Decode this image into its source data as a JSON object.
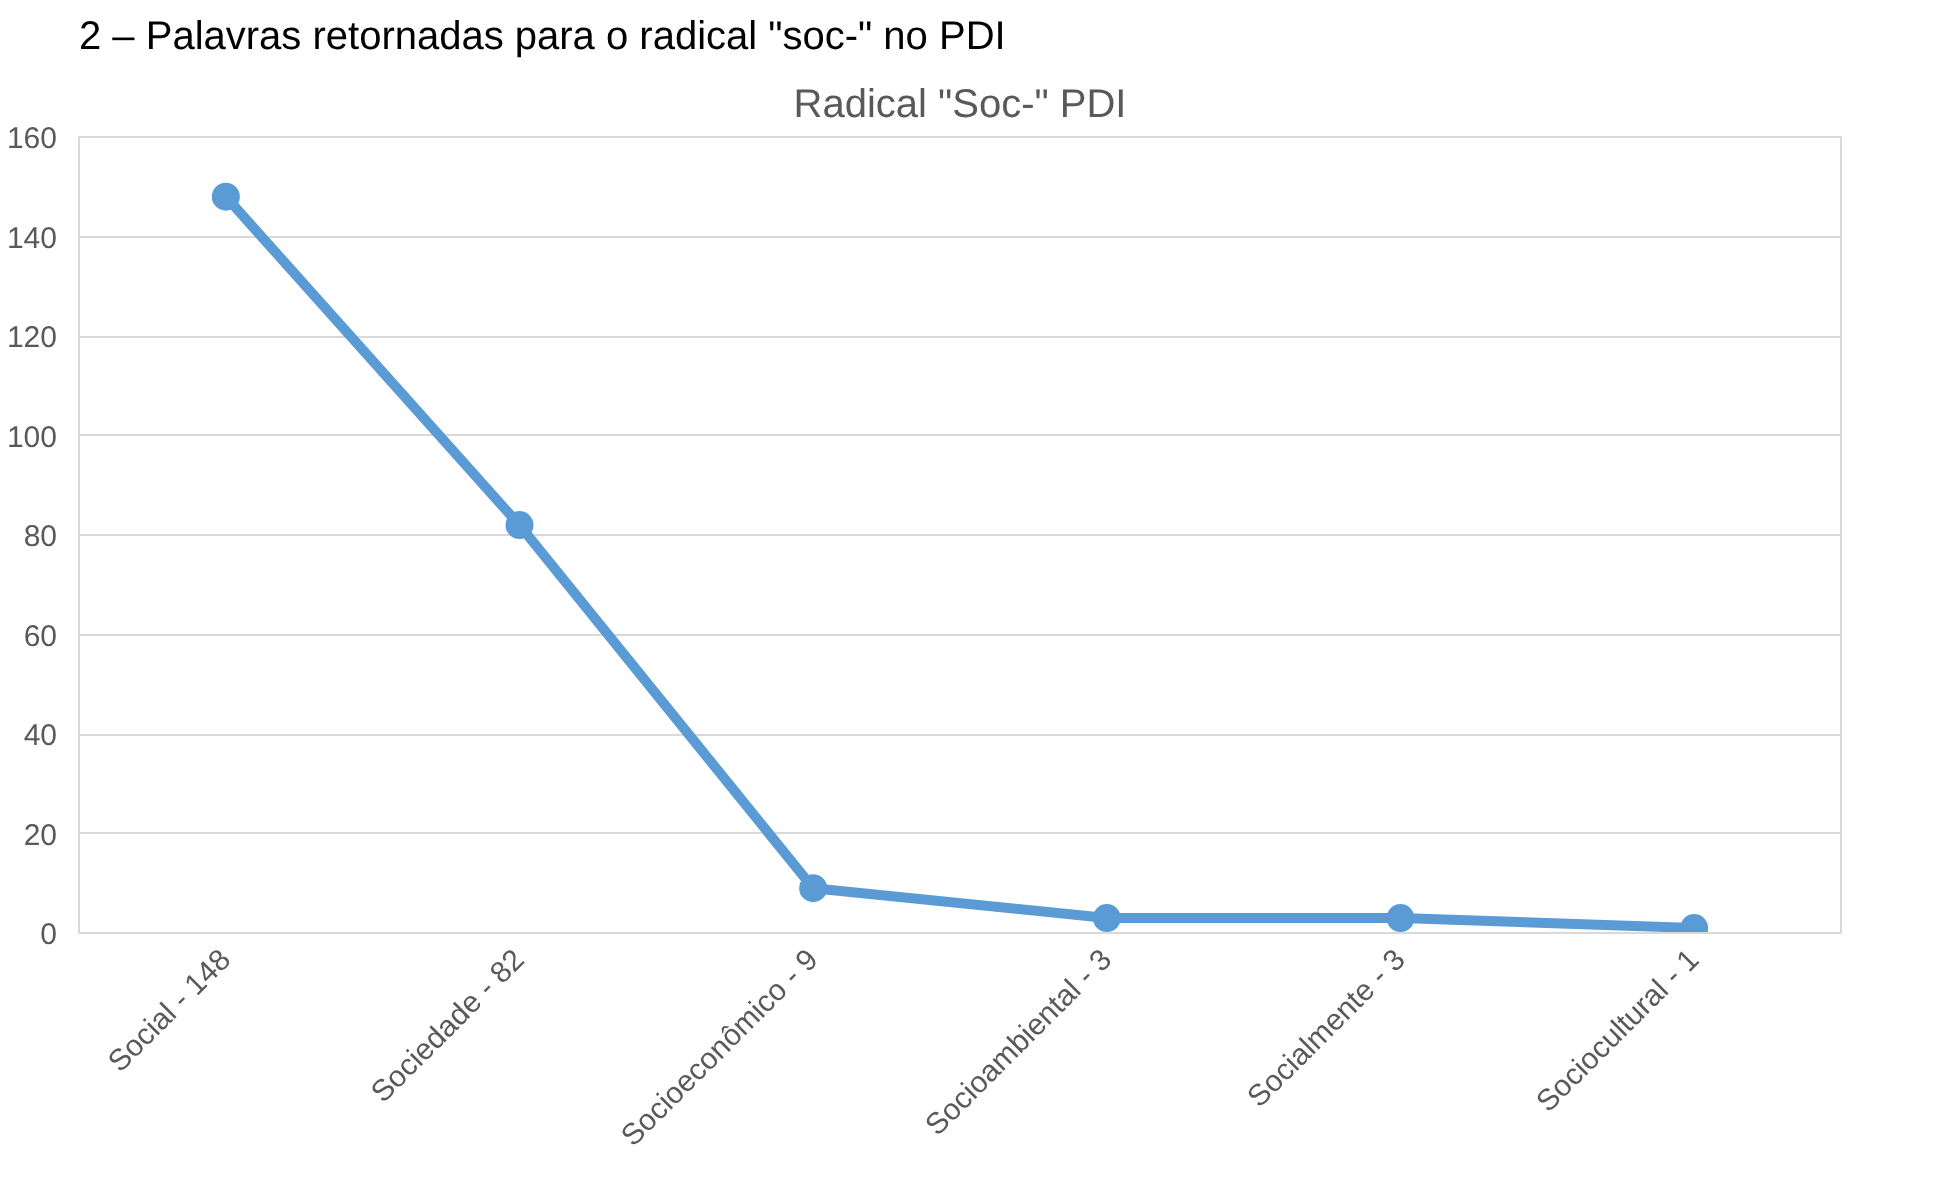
{
  "chart_data": {
    "type": "line",
    "title": "Radical \"Soc-\" PDI",
    "annotations": [
      "2 – Palavras retornadas para o radical \"soc-\" no PDI"
    ],
    "categories": [
      "Social - 148",
      "Sociedade - 82",
      "Socioeconômico - 9",
      "Socioambiental - 3",
      "Socialmente - 3",
      "Sociocultural - 1"
    ],
    "series": [
      {
        "color": "#5b9bd5",
        "values": [
          148,
          82,
          9,
          3,
          3,
          1
        ]
      }
    ],
    "ylim": [
      0,
      160
    ],
    "yticks": [
      0,
      20,
      40,
      60,
      80,
      100,
      120,
      140,
      160
    ],
    "grid": "y",
    "marker": "circle",
    "line_style": "solid"
  }
}
